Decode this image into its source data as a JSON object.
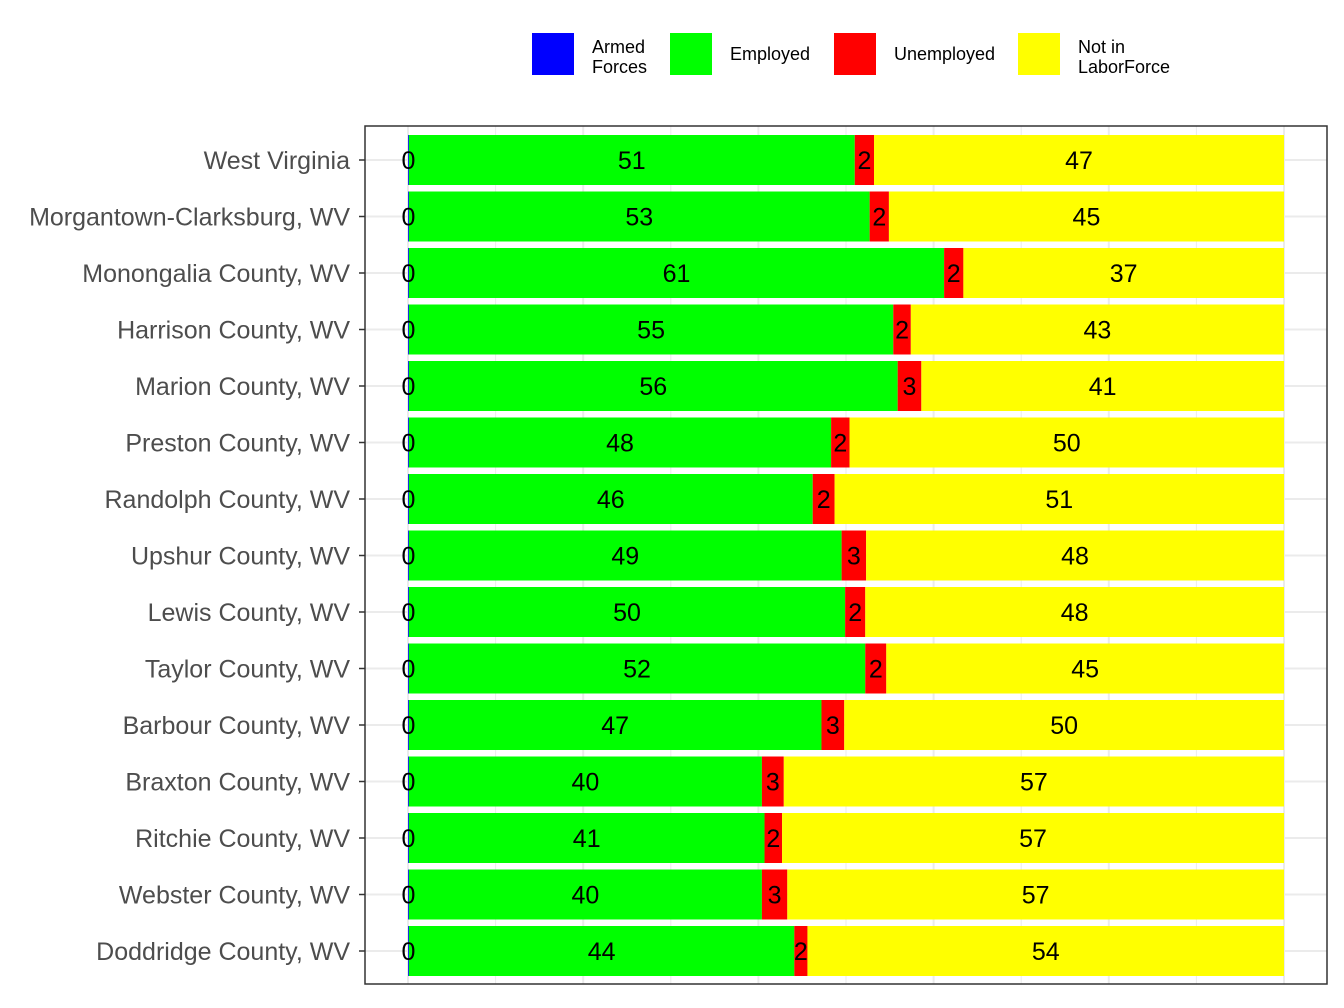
{
  "chart_data": {
    "type": "bar",
    "orientation": "horizontal",
    "stacked": true,
    "xlabel": "",
    "ylabel": "",
    "xlim": [
      0,
      100
    ],
    "grid": true,
    "legend_position": "top",
    "categories": [
      "West Virginia",
      "Morgantown-Clarksburg, WV",
      "Monongalia County, WV",
      "Harrison County, WV",
      "Marion County, WV",
      "Preston County, WV",
      "Randolph County, WV",
      "Upshur County, WV",
      "Lewis County, WV",
      "Taylor County, WV",
      "Barbour County, WV",
      "Braxton County, WV",
      "Ritchie County, WV",
      "Webster County, WV",
      "Doddridge County, WV"
    ],
    "series": [
      {
        "name": "Armed Forces",
        "legend_lines": [
          "Armed",
          "Forces"
        ],
        "color": "#0000ff",
        "values": [
          0.1,
          0.1,
          0.1,
          0.1,
          0.1,
          0.1,
          0.1,
          0.1,
          0.1,
          0.1,
          0.1,
          0.1,
          0.1,
          0.1,
          0.1
        ],
        "labels": [
          "0",
          "0",
          "0",
          "0",
          "0",
          "0",
          "0",
          "0",
          "0",
          "0",
          "0",
          "0",
          "0",
          "0",
          "0"
        ]
      },
      {
        "name": "Employed",
        "legend_lines": [
          "Employed"
        ],
        "color": "#00ff00",
        "values": [
          50.9,
          52.6,
          61.1,
          55.3,
          55.8,
          48.2,
          46.1,
          49.4,
          49.8,
          52.1,
          47.1,
          40.3,
          40.6,
          40.3,
          44.0
        ],
        "labels": [
          "51",
          "53",
          "61",
          "55",
          "56",
          "48",
          "46",
          "49",
          "50",
          "52",
          "47",
          "40",
          "41",
          "40",
          "44"
        ]
      },
      {
        "name": "Unemployed",
        "legend_lines": [
          "Unemployed"
        ],
        "color": "#ff0000",
        "values": [
          2.2,
          2.2,
          2.2,
          2.0,
          2.7,
          2.1,
          2.5,
          2.8,
          2.3,
          2.4,
          2.6,
          2.5,
          2.0,
          2.9,
          1.5
        ],
        "labels": [
          "2",
          "2",
          "2",
          "2",
          "3",
          "2",
          "2",
          "3",
          "2",
          "2",
          "3",
          "3",
          "2",
          "3",
          "2"
        ]
      },
      {
        "name": "Not in LaborForce",
        "legend_lines": [
          "Not in",
          "LaborForce"
        ],
        "color": "#ffff00",
        "values": [
          46.8,
          45.1,
          36.6,
          42.6,
          41.4,
          49.6,
          51.3,
          47.7,
          47.8,
          45.4,
          50.2,
          57.1,
          57.3,
          56.7,
          54.4
        ],
        "labels": [
          "47",
          "45",
          "37",
          "43",
          "41",
          "50",
          "51",
          "48",
          "48",
          "45",
          "50",
          "57",
          "57",
          "57",
          "54"
        ]
      }
    ]
  }
}
